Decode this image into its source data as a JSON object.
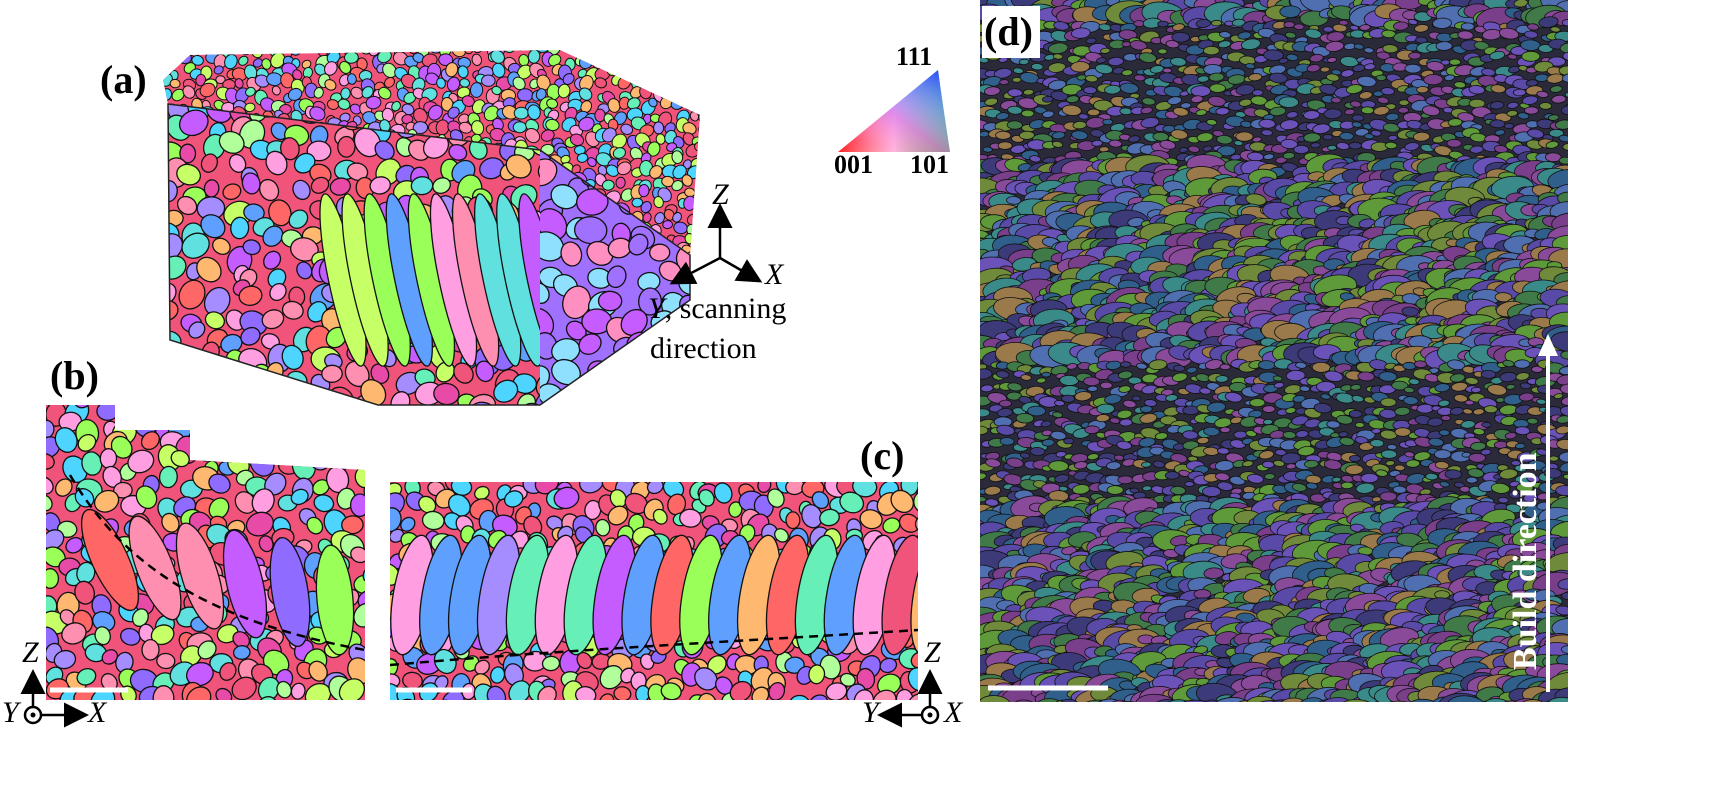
{
  "panels": {
    "a": {
      "label": "(a)"
    },
    "b": {
      "label": "(b)"
    },
    "c": {
      "label": "(c)"
    },
    "d": {
      "label": "(d)"
    }
  },
  "ipf_key": {
    "top": "111",
    "bottom_left": "001",
    "bottom_right": "101"
  },
  "triad_3d": {
    "z": "Z",
    "x": "X",
    "y_line1_axis": "Y",
    "y_line1_rest": ", scanning",
    "y_line2": "direction"
  },
  "triad_b": {
    "z": "Z",
    "y": "Y",
    "x": "X"
  },
  "triad_c": {
    "z": "Z",
    "y": "Y",
    "x": "X"
  },
  "build_direction": "Build direction",
  "colors": {
    "grain_palette": [
      "#f0547a",
      "#ff8fb0",
      "#c45cff",
      "#8f6bff",
      "#5fa0ff",
      "#4dd4ff",
      "#66f0b8",
      "#9bff5a",
      "#c7ff66",
      "#ffb870",
      "#ff6666",
      "#e84aa8",
      "#a58cff",
      "#ff9ee0",
      "#61e0e0",
      "#b0ff9a"
    ],
    "dark_palette": [
      "#3c3a78",
      "#5a4aa8",
      "#6a52b8",
      "#3f7a48",
      "#5e9a3a",
      "#2f5f8a",
      "#7a3f8a",
      "#4f6fb0",
      "#6e8a3a",
      "#8a4a9a",
      "#3a8a8a",
      "#9a7a4a"
    ],
    "boundary": "#111111"
  }
}
